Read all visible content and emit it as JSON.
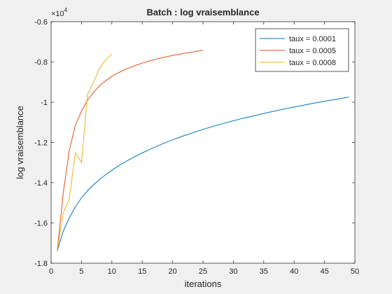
{
  "chart_data": {
    "type": "line",
    "title": "Batch : log vraisemblance",
    "xlabel": "iterations",
    "ylabel": "log vraisemblance",
    "xlim": [
      0,
      50
    ],
    "ylim": [
      -1.8,
      -0.6
    ],
    "exponent_label": "×10",
    "exponent_power": "4",
    "x_ticks": [
      0,
      5,
      10,
      15,
      20,
      25,
      30,
      35,
      40,
      45,
      50
    ],
    "x_tick_labels": [
      "0",
      "5",
      "10",
      "15",
      "20",
      "25",
      "30",
      "35",
      "40",
      "45",
      "50"
    ],
    "y_ticks": [
      -1.8,
      -1.6,
      -1.4,
      -1.2,
      -1.0,
      -0.8,
      -0.6
    ],
    "y_tick_labels": [
      "-1.8",
      "-1.6",
      "-1.4",
      "-1.2",
      "-1",
      "-0.8",
      "-0.6"
    ],
    "grid": false,
    "legend_position": "top-right",
    "series": [
      {
        "name": "taux = 0.0001",
        "color": "#0072BD",
        "x": [
          1,
          2,
          3,
          4,
          5,
          6,
          7,
          8,
          9,
          10,
          11,
          12,
          13,
          14,
          15,
          16,
          17,
          18,
          19,
          20,
          21,
          22,
          23,
          24,
          25,
          26,
          27,
          28,
          29,
          30,
          31,
          32,
          33,
          34,
          35,
          36,
          37,
          38,
          39,
          40,
          41,
          42,
          43,
          44,
          45,
          46,
          47,
          48,
          49
        ],
        "y": [
          -1.74,
          -1.64,
          -1.575,
          -1.52,
          -1.475,
          -1.44,
          -1.41,
          -1.383,
          -1.36,
          -1.338,
          -1.318,
          -1.3,
          -1.283,
          -1.267,
          -1.252,
          -1.238,
          -1.224,
          -1.211,
          -1.199,
          -1.187,
          -1.176,
          -1.165,
          -1.155,
          -1.145,
          -1.135,
          -1.126,
          -1.117,
          -1.109,
          -1.1,
          -1.092,
          -1.084,
          -1.077,
          -1.07,
          -1.063,
          -1.056,
          -1.049,
          -1.043,
          -1.036,
          -1.03,
          -1.024,
          -1.018,
          -1.012,
          -1.006,
          -1.001,
          -0.995,
          -0.99,
          -0.985,
          -0.98,
          -0.975
        ]
      },
      {
        "name": "taux = 0.0005",
        "color": "#D95319",
        "x": [
          1,
          2,
          3,
          4,
          5,
          6,
          7,
          8,
          9,
          10,
          11,
          12,
          13,
          14,
          15,
          16,
          17,
          18,
          19,
          20,
          21,
          22,
          23,
          24,
          25
        ],
        "y": [
          -1.74,
          -1.45,
          -1.24,
          -1.115,
          -1.045,
          -0.99,
          -0.95,
          -0.918,
          -0.893,
          -0.872,
          -0.855,
          -0.84,
          -0.827,
          -0.816,
          -0.806,
          -0.797,
          -0.789,
          -0.781,
          -0.774,
          -0.768,
          -0.762,
          -0.757,
          -0.752,
          -0.747,
          -0.742
        ]
      },
      {
        "name": "taux = 0.0008",
        "color": "#EDB120",
        "x": [
          1,
          2,
          3,
          4,
          5,
          6,
          7,
          8,
          9,
          10
        ],
        "y": [
          -1.74,
          -1.55,
          -1.48,
          -1.25,
          -1.3,
          -0.96,
          -0.9,
          -0.83,
          -0.79,
          -0.76
        ]
      }
    ]
  }
}
